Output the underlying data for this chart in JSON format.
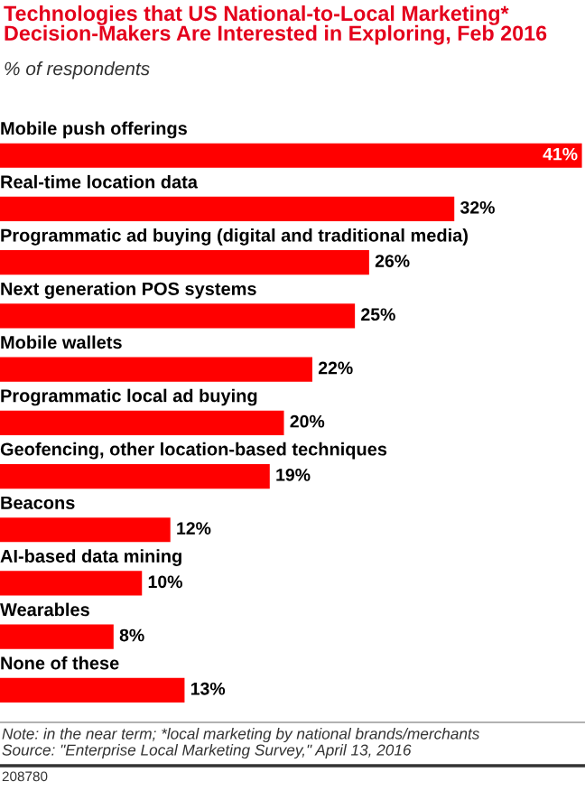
{
  "chart_data": {
    "type": "bar",
    "orientation": "horizontal",
    "title": "Technologies that US National-to-Local Marketing* Decision-Makers Are Interested in Exploring, Feb 2016",
    "subtitle": "% of respondents",
    "categories": [
      "Mobile push offerings",
      "Real-time location data",
      "Programmatic ad buying (digital and traditional media)",
      "Next generation POS systems",
      "Mobile wallets",
      "Programmatic local ad buying",
      "Geofencing, other location-based techniques",
      "Beacons",
      "AI-based data mining",
      "Wearables",
      "None of these"
    ],
    "values": [
      41,
      32,
      26,
      25,
      22,
      20,
      19,
      12,
      10,
      8,
      13
    ],
    "value_labels": [
      "41%",
      "32%",
      "26%",
      "25%",
      "22%",
      "20%",
      "19%",
      "12%",
      "10%",
      "8%",
      "13%"
    ],
    "color": "#ff0000",
    "legend": false,
    "annotations": [
      "Note: in the near term; *local marketing by national brands/merchants",
      "Source: \"Enterprise Local Marketing Survey,\" April 13, 2016",
      "208780"
    ]
  }
}
